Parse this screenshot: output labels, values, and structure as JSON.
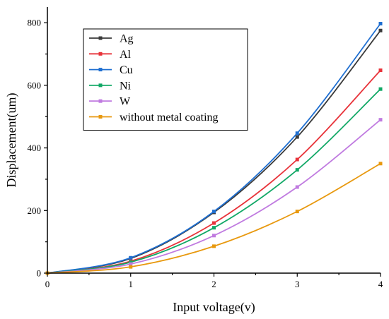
{
  "chart_data": {
    "type": "line",
    "title": "",
    "xlabel": "Input voltage(v)",
    "ylabel": "Displacement(um)",
    "x": [
      0,
      1,
      2,
      3,
      4
    ],
    "xlim": [
      0,
      4
    ],
    "ylim": [
      0,
      850
    ],
    "xticks": [
      "0",
      "1",
      "2",
      "3",
      "4"
    ],
    "yticks": [
      "0",
      "200",
      "400",
      "600",
      "800"
    ],
    "grid": false,
    "legend_position": "top-left",
    "series": [
      {
        "name": "Ag",
        "color": "#3a3a3a",
        "values": [
          0,
          47,
          194,
          435,
          775
        ]
      },
      {
        "name": "Al",
        "color": "#e8333a",
        "values": [
          0,
          38,
          160,
          363,
          648
        ]
      },
      {
        "name": "Cu",
        "color": "#1f6fd1",
        "values": [
          0,
          49,
          197,
          447,
          797
        ]
      },
      {
        "name": "Ni",
        "color": "#11a866",
        "values": [
          0,
          35,
          145,
          330,
          588
        ]
      },
      {
        "name": "W",
        "color": "#c07be0",
        "values": [
          0,
          29,
          120,
          275,
          490
        ]
      },
      {
        "name": "without metal coating",
        "color": "#e8990f",
        "values": [
          0,
          20,
          86,
          197,
          350
        ]
      }
    ]
  }
}
